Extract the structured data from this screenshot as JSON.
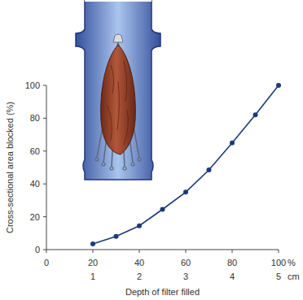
{
  "chart_data": {
    "type": "line",
    "xlabel": "Depth of filter filled",
    "ylabel": "Cross-sectional area blocked (%)",
    "x": [
      20,
      30,
      40,
      50,
      60,
      70,
      80,
      90,
      100
    ],
    "values": [
      3.5,
      8,
      14.5,
      24.5,
      35,
      48.5,
      65,
      82,
      100
    ],
    "color": "#1d3a78",
    "marker": "circle",
    "xlim": [
      0,
      100
    ],
    "xticks": [
      0,
      20,
      40,
      60,
      80,
      100
    ],
    "x2lim": [
      0,
      5
    ],
    "x2ticks": [
      1,
      2,
      3,
      4,
      5
    ],
    "ylim": [
      0,
      100
    ],
    "yticks": [
      0,
      20,
      40,
      60,
      80,
      100
    ],
    "annotations": [
      "%",
      "cm"
    ],
    "grid": false
  }
}
